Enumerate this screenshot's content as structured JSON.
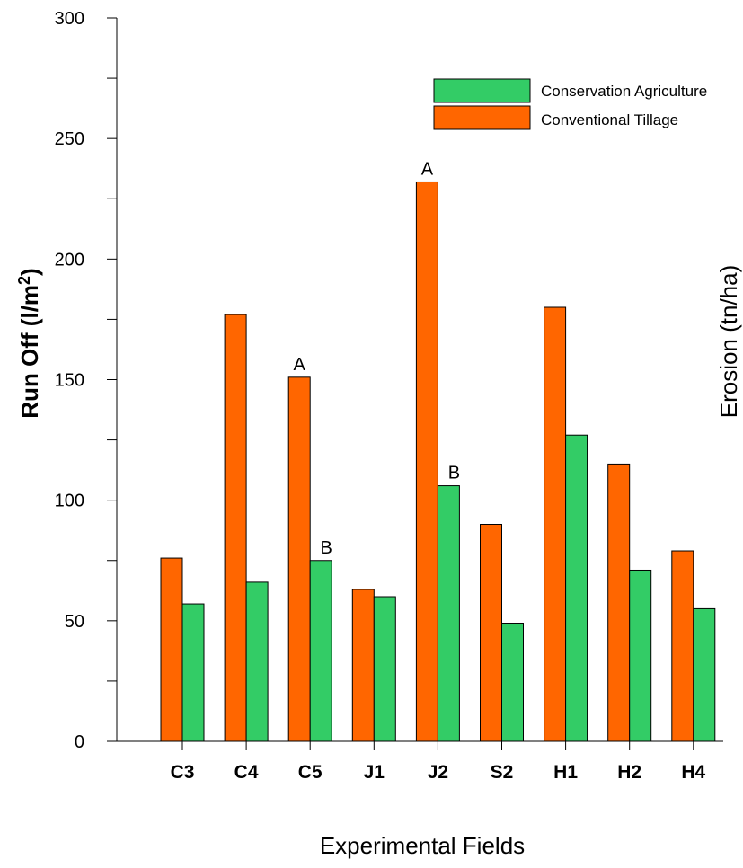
{
  "chart_data": {
    "type": "bar",
    "categories": [
      "C3",
      "C4",
      "C5",
      "J1",
      "J2",
      "S2",
      "H1",
      "H2",
      "H4"
    ],
    "series": [
      {
        "name": "Conventional Tillage",
        "color": "#ff6600",
        "values": [
          76,
          177,
          151,
          63,
          232,
          90,
          180,
          115,
          79
        ]
      },
      {
        "name": "Conservation Agriculture",
        "color": "#33cc66",
        "values": [
          57,
          66,
          75,
          60,
          106,
          49,
          127,
          71,
          55
        ]
      }
    ],
    "legend_order": [
      "Conservation Agriculture",
      "Conventional Tillage"
    ],
    "legend_position": "top-right",
    "xlabel": "Experimental Fields",
    "ylabel_text": "Run Off (l/m",
    "ylabel_sup": "2",
    "ylabel_close": ")",
    "y2label": "Erosion (tn/ha)",
    "ylim": [
      0,
      300
    ],
    "yticks": [
      0,
      50,
      100,
      150,
      200,
      250,
      300
    ],
    "yticks_minor_step": 25,
    "grid": false,
    "annotations": [
      {
        "category": "C5",
        "series": "Conventional Tillage",
        "text": "A"
      },
      {
        "category": "C5",
        "series": "Conservation Agriculture",
        "text": "B"
      },
      {
        "category": "J2",
        "series": "Conventional Tillage",
        "text": "A"
      },
      {
        "category": "J2",
        "series": "Conservation Agriculture",
        "text": "B"
      }
    ]
  }
}
